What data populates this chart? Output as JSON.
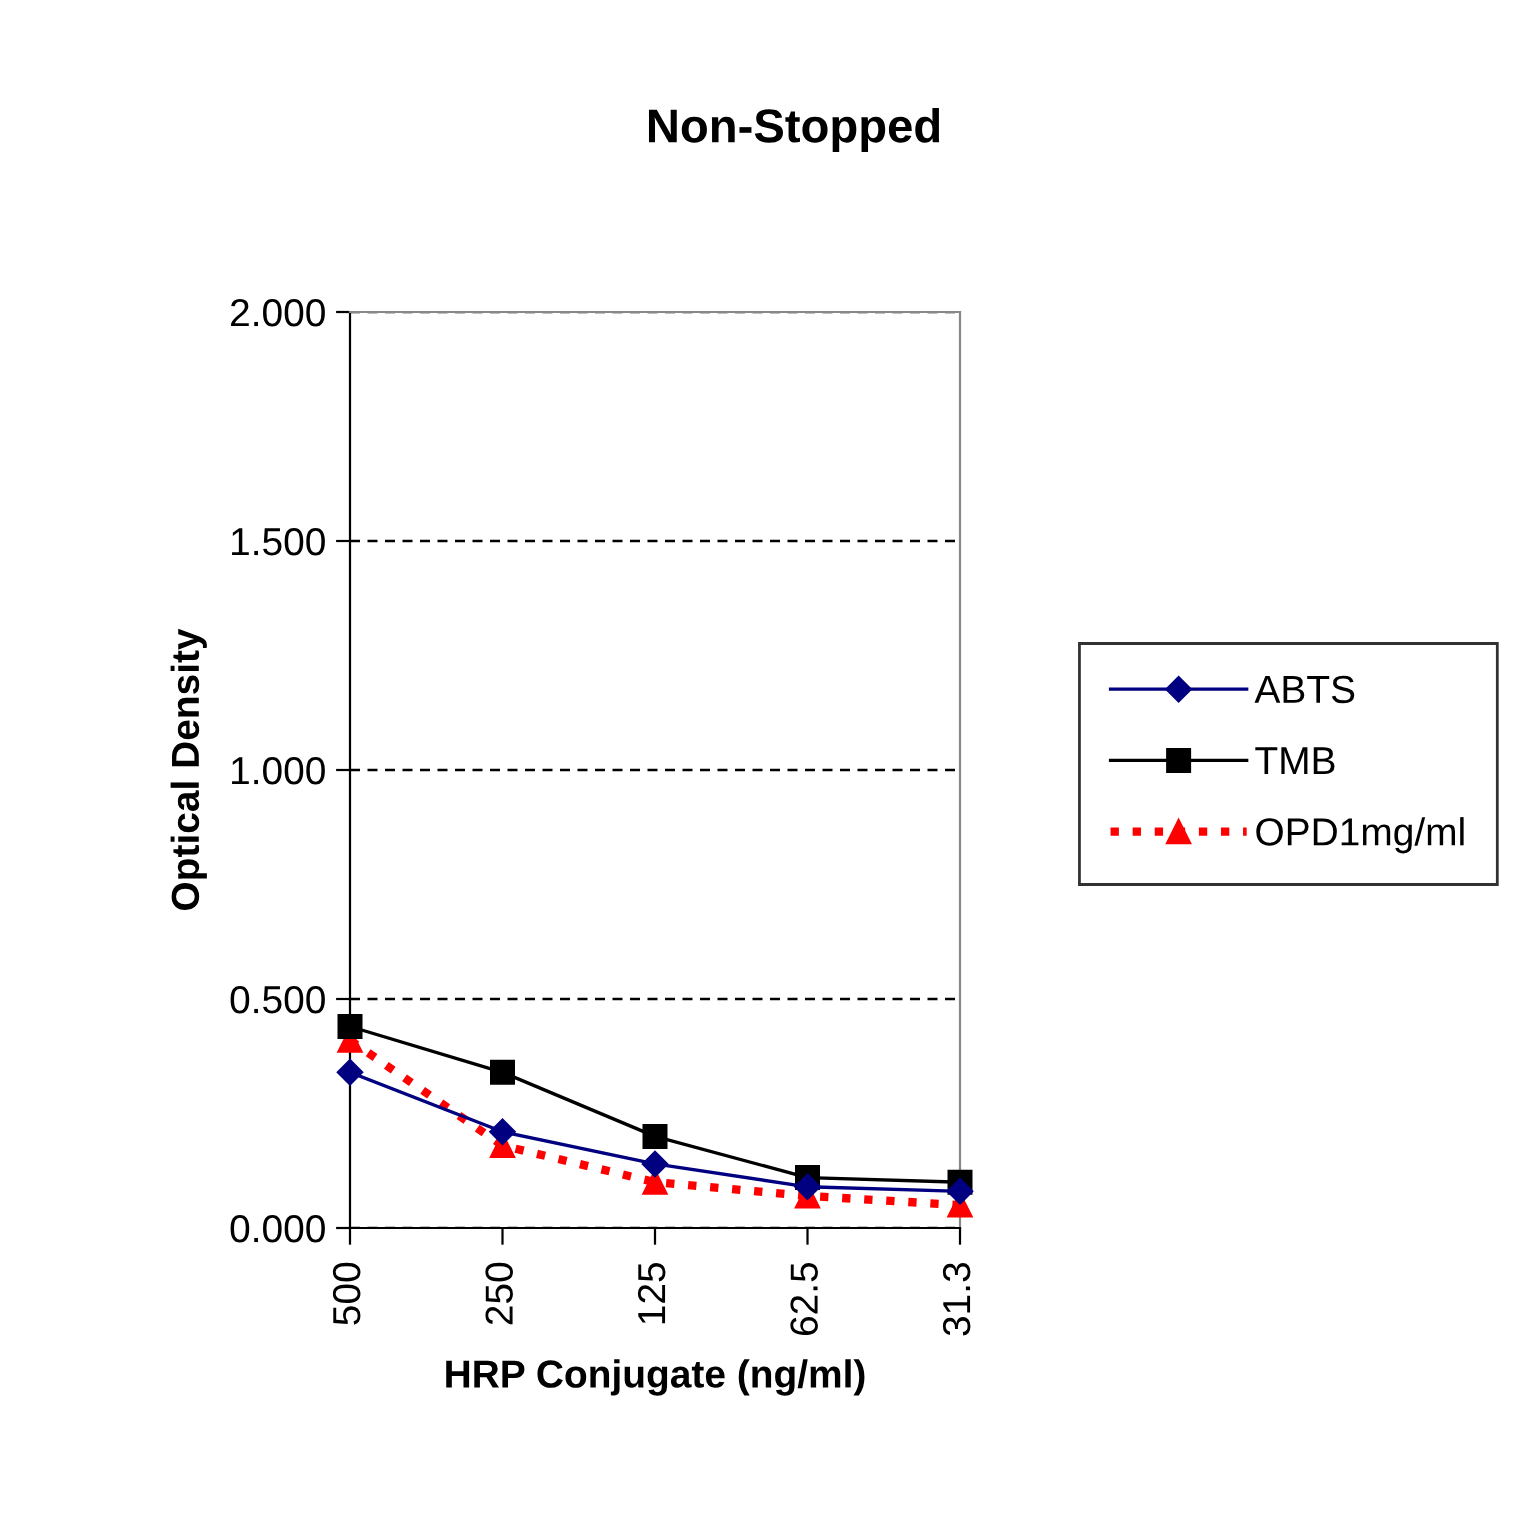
{
  "chart_data": {
    "type": "line",
    "title": "Non-Stopped",
    "xlabel": "HRP Conjugate (ng/ml)",
    "ylabel": "Optical Density",
    "categories": [
      "500",
      "250",
      "125",
      "62.5",
      "31.3"
    ],
    "series": [
      {
        "name": "ABTS",
        "color": "#000080",
        "marker": "diamond",
        "line_style": "solid",
        "values": [
          0.34,
          0.21,
          0.14,
          0.09,
          0.08
        ]
      },
      {
        "name": "TMB",
        "color": "#000000",
        "marker": "square",
        "line_style": "solid",
        "values": [
          0.44,
          0.34,
          0.2,
          0.11,
          0.1
        ]
      },
      {
        "name": "OPD1mg/ml",
        "color": "#ff0000",
        "marker": "triangle",
        "line_style": "dotted",
        "values": [
          0.41,
          0.18,
          0.1,
          0.07,
          0.05
        ]
      }
    ],
    "ylim": [
      0,
      2
    ],
    "yticks": [
      {
        "value": 0,
        "label": "0.000"
      },
      {
        "value": 0.5,
        "label": "0.500"
      },
      {
        "value": 1,
        "label": "1.000"
      },
      {
        "value": 1.5,
        "label": "1.500"
      },
      {
        "value": 2,
        "label": "2.000"
      }
    ],
    "grid": "y",
    "legend": "right"
  }
}
